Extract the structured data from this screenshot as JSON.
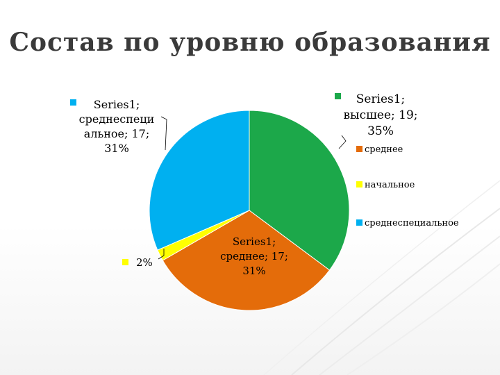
{
  "slide": {
    "title": "Состав по уровню образования"
  },
  "colors": {
    "высшее": "#1ca84a",
    "среднее": "#e46c0a",
    "начальное": "#ffff00",
    "среднеспециальное": "#00b0f0"
  },
  "chart_data": {
    "type": "pie",
    "title": "",
    "series_name": "Series1",
    "categories": [
      "высшее",
      "среднее",
      "начальное",
      "среднеспециальное"
    ],
    "values": [
      19,
      17,
      1,
      17
    ],
    "percent_labels": [
      "35%",
      "31%",
      "2%",
      "31%"
    ],
    "data_labels": [
      [
        "Series1;",
        "высшее; 19;",
        "35%"
      ],
      [
        "Series1;",
        "среднее; 17;",
        "31%"
      ],
      [
        "2%"
      ],
      [
        "Series1;",
        "среднеспеци",
        "альное; 17;",
        "31%"
      ]
    ],
    "legend": {
      "position": "right",
      "entries": [
        "высшее",
        "среднее",
        "начальное",
        "среднеспециальное"
      ]
    }
  }
}
